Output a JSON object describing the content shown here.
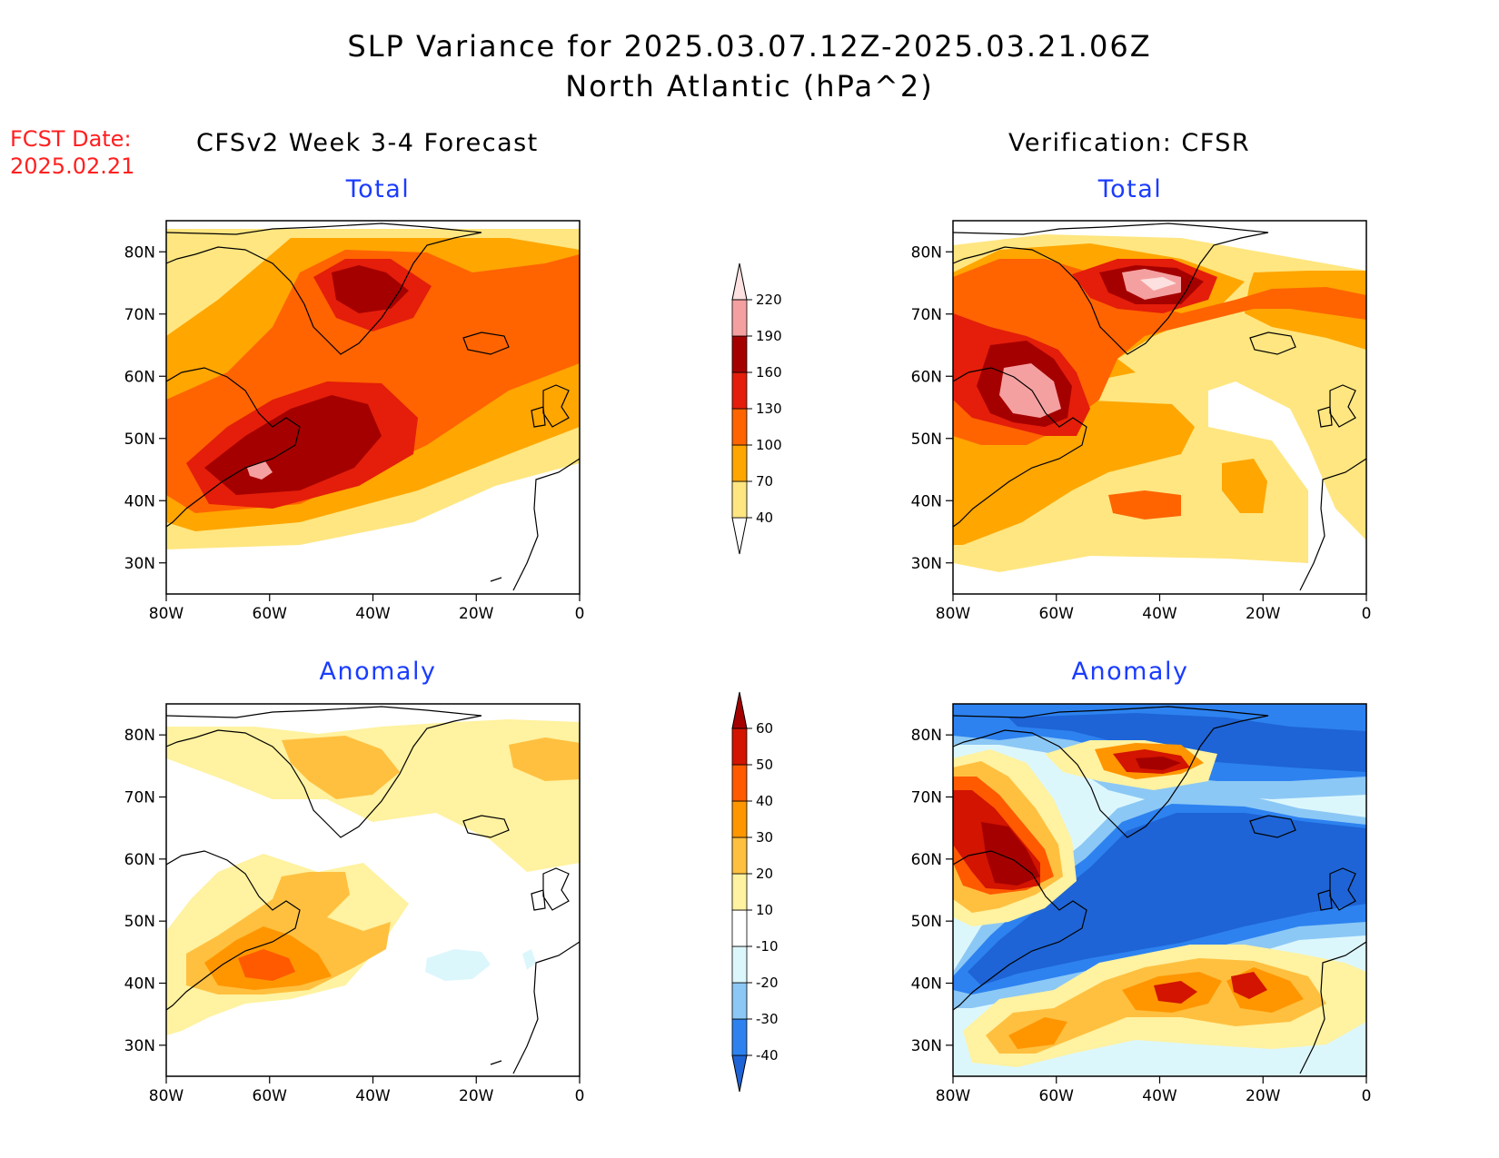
{
  "header": {
    "title": "SLP Variance for 2025.03.07.12Z-2025.03.21.06Z",
    "subtitle": "North Atlantic (hPa^2)"
  },
  "fcst": {
    "label": "FCST Date:",
    "date": "2025.02.21"
  },
  "columns": {
    "left": "CFSv2 Week 3-4 Forecast",
    "right": "Verification: CFSR"
  },
  "panels": {
    "fcst_total": {
      "title": "Total"
    },
    "obs_total": {
      "title": "Total"
    },
    "fcst_anom": {
      "title": "Anomaly"
    },
    "obs_anom": {
      "title": "Anomaly"
    }
  },
  "axes": {
    "lat_labels": [
      "80N",
      "70N",
      "60N",
      "50N",
      "40N",
      "30N"
    ],
    "lon_labels": [
      "80W",
      "60W",
      "40W",
      "20W",
      "0"
    ],
    "lat_range": [
      25,
      85
    ],
    "lon_range": [
      -80,
      0
    ]
  },
  "colorbars": {
    "total": {
      "levels": [
        "40",
        "70",
        "100",
        "130",
        "160",
        "190",
        "220"
      ],
      "colors": [
        "#ffe680",
        "#ffa600",
        "#ff6400",
        "#e41e0a",
        "#a50000",
        "#f5a0a0",
        "#fde0e0"
      ]
    },
    "anomaly": {
      "levels": [
        "-40",
        "-30",
        "-20",
        "-10",
        "10",
        "20",
        "30",
        "40",
        "50",
        "60"
      ],
      "colors": [
        "#1e64d6",
        "#2d82f0",
        "#8cc8f5",
        "#dcf7fc",
        "#ffffff",
        "#fff2a0",
        "#ffc040",
        "#ff9600",
        "#ff5a00",
        "#d21400",
        "#a50000"
      ]
    }
  }
}
